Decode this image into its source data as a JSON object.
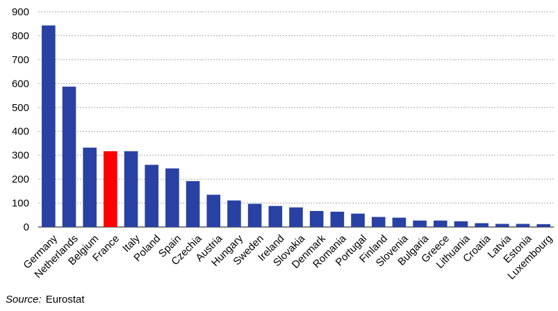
{
  "chart_data": {
    "type": "bar",
    "categories": [
      "Germany",
      "Netherlands",
      "Belgium",
      "France",
      "Italy",
      "Poland",
      "Spain",
      "Czechia",
      "Austria",
      "Hungary",
      "Sweden",
      "Ireland",
      "Slovakia",
      "Denmark",
      "Romania",
      "Portugal",
      "Finland",
      "Slovenia",
      "Bulgaria",
      "Greece",
      "Lithuania",
      "Croatia",
      "Latvia",
      "Estonia",
      "Luxembourg"
    ],
    "values": [
      843,
      587,
      332,
      317,
      317,
      260,
      245,
      192,
      135,
      111,
      97,
      88,
      82,
      67,
      64,
      56,
      42,
      39,
      27,
      27,
      24,
      16,
      13,
      13,
      12
    ],
    "highlight": "France",
    "colors": {
      "bar": "#2841a3",
      "highlight": "#ff0000",
      "grid": "#a6a6a6"
    },
    "ylim": [
      0,
      900
    ],
    "yticks": [
      0,
      100,
      200,
      300,
      400,
      500,
      600,
      700,
      800,
      900
    ],
    "grid": true,
    "title": "",
    "xlabel": "",
    "ylabel": ""
  },
  "source": {
    "label": "Source:",
    "value": "Eurostat"
  }
}
